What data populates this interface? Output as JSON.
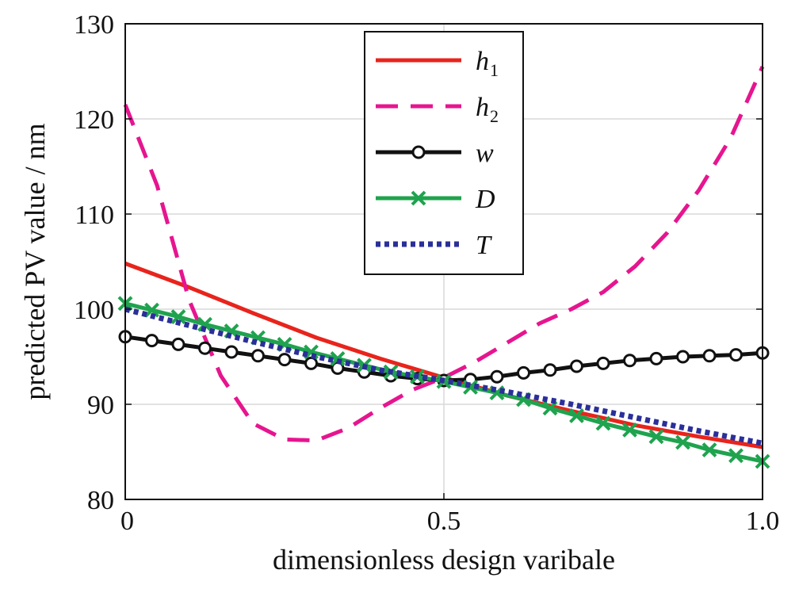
{
  "chart_data": {
    "type": "line",
    "title": "",
    "xlabel": "dimensionless design varibale",
    "ylabel": "predicted PV value / nm",
    "xlim": [
      0,
      1
    ],
    "ylim": [
      80,
      130
    ],
    "xticks": [
      0,
      0.5,
      1.0
    ],
    "xtick_labels": [
      "0",
      "0.5",
      "1.0"
    ],
    "yticks": [
      80,
      90,
      100,
      110,
      120,
      130
    ],
    "ytick_labels": [
      "80",
      "90",
      "100",
      "110",
      "120",
      "130"
    ],
    "grid": true,
    "legend_position": "top-center",
    "series": [
      {
        "name": "h",
        "subscript": "1",
        "color": "#e8241c",
        "line_style": "solid",
        "marker": "none",
        "x": [
          0,
          0.1,
          0.2,
          0.3,
          0.4,
          0.5,
          0.6,
          0.7,
          0.8,
          0.9,
          1.0
        ],
        "y": [
          104.8,
          102.3,
          99.6,
          97.0,
          94.8,
          92.8,
          90.9,
          89.3,
          87.8,
          86.6,
          85.5
        ]
      },
      {
        "name": "h",
        "subscript": "2",
        "color": "#e6158f",
        "line_style": "dashed",
        "marker": "none",
        "x": [
          0,
          0.05,
          0.1,
          0.15,
          0.2,
          0.25,
          0.3,
          0.35,
          0.4,
          0.45,
          0.5,
          0.55,
          0.6,
          0.65,
          0.7,
          0.75,
          0.8,
          0.85,
          0.9,
          0.95,
          1.0
        ],
        "y": [
          121.5,
          113.0,
          101.0,
          93.0,
          88.0,
          86.3,
          86.2,
          87.5,
          89.6,
          91.5,
          92.8,
          94.5,
          96.5,
          98.5,
          100.0,
          101.8,
          104.5,
          108.0,
          112.5,
          118.0,
          125.5
        ]
      },
      {
        "name": "w",
        "subscript": "",
        "color": "#111111",
        "line_style": "solid",
        "marker": "circle",
        "x": [
          0,
          0.0417,
          0.0833,
          0.125,
          0.1667,
          0.2083,
          0.25,
          0.2917,
          0.3333,
          0.375,
          0.4167,
          0.4583,
          0.5,
          0.5417,
          0.5833,
          0.625,
          0.6667,
          0.7083,
          0.75,
          0.7917,
          0.8333,
          0.875,
          0.9167,
          0.9583,
          1.0
        ],
        "y": [
          97.1,
          96.7,
          96.3,
          95.9,
          95.5,
          95.1,
          94.7,
          94.3,
          93.8,
          93.4,
          93.0,
          92.7,
          92.5,
          92.6,
          92.9,
          93.3,
          93.6,
          94.0,
          94.3,
          94.6,
          94.8,
          95.0,
          95.1,
          95.2,
          95.4
        ]
      },
      {
        "name": "D",
        "subscript": "",
        "color": "#1fa34e",
        "line_style": "solid",
        "marker": "x",
        "x": [
          0,
          0.0417,
          0.0833,
          0.125,
          0.1667,
          0.2083,
          0.25,
          0.2917,
          0.3333,
          0.375,
          0.4167,
          0.4583,
          0.5,
          0.5417,
          0.5833,
          0.625,
          0.6667,
          0.7083,
          0.75,
          0.7917,
          0.8333,
          0.875,
          0.9167,
          0.9583,
          1.0
        ],
        "y": [
          100.6,
          99.9,
          99.2,
          98.4,
          97.7,
          97.0,
          96.3,
          95.5,
          94.8,
          94.1,
          93.4,
          92.9,
          92.4,
          91.8,
          91.2,
          90.5,
          89.6,
          88.8,
          88.0,
          87.3,
          86.6,
          86.0,
          85.2,
          84.6,
          84.0
        ]
      },
      {
        "name": "T",
        "subscript": "",
        "color": "#2b2f9a",
        "line_style": "dotted",
        "marker": "none",
        "x": [
          0,
          0.1,
          0.2,
          0.3,
          0.4,
          0.5,
          0.6,
          0.7,
          0.8,
          0.9,
          1.0
        ],
        "y": [
          100.0,
          98.3,
          96.6,
          95.0,
          93.6,
          92.5,
          91.3,
          90.0,
          88.6,
          87.2,
          85.9
        ]
      }
    ]
  }
}
